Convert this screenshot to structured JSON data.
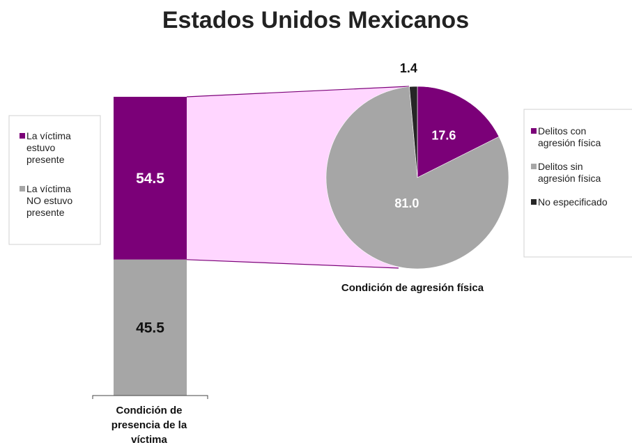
{
  "chart_data": {
    "type": "bar-of-pie",
    "title": "Estados Unidos Mexicanos",
    "colors": {
      "purple": "#7b0078",
      "light_pink": "#ffd6ff",
      "gray": "#a6a6a6",
      "dark": "#262626"
    },
    "bar": {
      "axis_label_lines": [
        "Condición de",
        "presencia de la",
        "víctima"
      ],
      "segments": [
        {
          "name": "La víctima estuvo presente",
          "value": 54.5,
          "label": "54.5",
          "color": "#7b0078"
        },
        {
          "name": "La víctima NO estuvo presente",
          "value": 45.5,
          "label": "45.5",
          "color": "#a6a6a6"
        }
      ],
      "legend": [
        {
          "lines": [
            "La víctima",
            "estuvo",
            "presente"
          ],
          "color": "#7b0078"
        },
        {
          "lines": [
            "La víctima",
            "NO estuvo",
            "presente"
          ],
          "color": "#a6a6a6"
        }
      ]
    },
    "pie": {
      "axis_label": "Condición de agresión física",
      "slices": [
        {
          "name": "Delitos con agresión física",
          "value": 17.6,
          "label": "17.6",
          "color": "#7b0078"
        },
        {
          "name": "Delitos sin agresión física",
          "value": 81.0,
          "label": "81.0",
          "color": "#a6a6a6"
        },
        {
          "name": "No especificado",
          "value": 1.4,
          "label": "1.4",
          "color": "#262626"
        }
      ],
      "legend": [
        {
          "lines": [
            "Delitos con",
            "agresión física"
          ],
          "color": "#7b0078"
        },
        {
          "lines": [
            "Delitos sin",
            "agresión física"
          ],
          "color": "#a6a6a6"
        },
        {
          "lines": [
            "No especificado"
          ],
          "color": "#262626"
        }
      ]
    }
  }
}
